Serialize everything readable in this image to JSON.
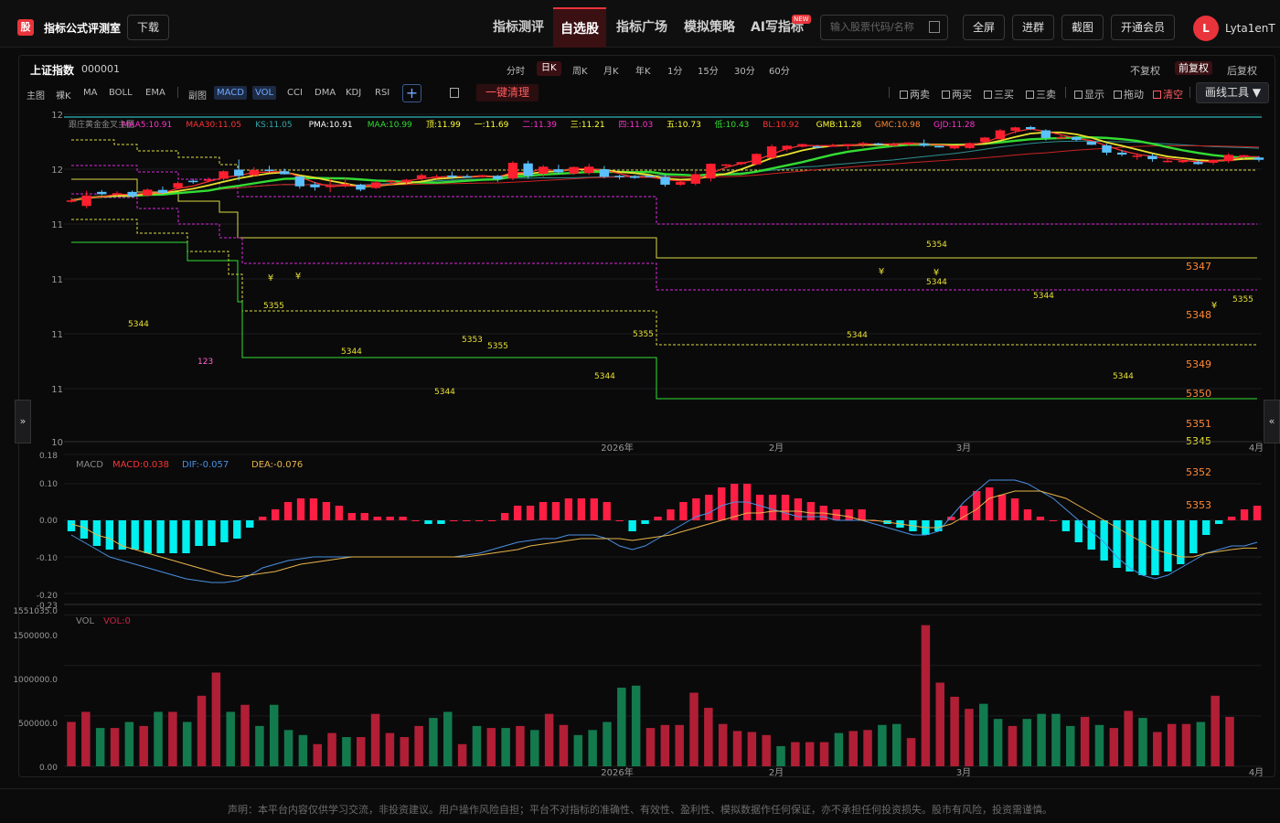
{
  "app": {
    "logo_char": "股",
    "title": "指标公式评测室",
    "download_label": "下载"
  },
  "nav": [
    {
      "label": "指标测评",
      "active": false
    },
    {
      "label": "自选股",
      "active": true
    },
    {
      "label": "指标广场",
      "active": false
    },
    {
      "label": "模拟策略",
      "active": false
    },
    {
      "label": "AI写指标",
      "active": false,
      "tag": "NEW"
    }
  ],
  "search": {
    "placeholder": "输入股票代码/名称"
  },
  "tools": [
    "全屏",
    "进群",
    "截图",
    "开通会员"
  ],
  "user": {
    "avatar_char": "L",
    "name": "Lyta1enT"
  },
  "stock": {
    "name": "上证指数",
    "code": "000001"
  },
  "periods": [
    {
      "label": "分时",
      "active": false
    },
    {
      "label": "日K",
      "active": true
    },
    {
      "label": "周K",
      "active": false
    },
    {
      "label": "月K",
      "active": false
    },
    {
      "label": "年K",
      "active": false
    },
    {
      "label": "1分",
      "active": false
    },
    {
      "label": "15分",
      "active": false
    },
    {
      "label": "30分",
      "active": false
    },
    {
      "label": "60分",
      "active": false
    }
  ],
  "fuquan": [
    {
      "label": "不复权",
      "active": false
    },
    {
      "label": "前复权",
      "active": true
    },
    {
      "label": "后复权",
      "active": false
    }
  ],
  "main_indicators": [
    "主图",
    "裸K",
    "MA",
    "BOLL",
    "EMA"
  ],
  "sub_indicators": [
    {
      "label": "副图",
      "active": false
    },
    {
      "label": "MACD",
      "active": true
    },
    {
      "label": "VOL",
      "active": true
    },
    {
      "label": "CCI",
      "active": false
    },
    {
      "label": "DMA",
      "active": false
    },
    {
      "label": "KDJ",
      "active": false
    },
    {
      "label": "RSI",
      "active": false
    }
  ],
  "add_label": "+",
  "clear_all_label": "一键清理",
  "signal_toggles": [
    {
      "label": "两卖",
      "color": "#bbbbbb"
    },
    {
      "label": "两买",
      "color": "#bbbbbb"
    },
    {
      "label": "三买",
      "color": "#bbbbbb"
    },
    {
      "label": "三卖",
      "color": "#bbbbbb"
    },
    {
      "label": "显示",
      "color": "#bbbbbb"
    },
    {
      "label": "拖动",
      "color": "#bbbbbb"
    },
    {
      "label": "清空",
      "color": "#ff5a5f"
    }
  ],
  "draw_tool_label": "画线工具 ▼",
  "side_tabs": {
    "left": "»",
    "right": "«"
  },
  "footer": "声明：本平台内容仅供学习交流，非投资建议。用户操作风险自担；平台不对指标的准确性、有效性、盈利性、模拟数据作任何保证，亦不承担任何投资损失。股市有风险，投资需谨慎。",
  "chart_data": {
    "type": "candlestick",
    "main_legend": [
      {
        "text": "跟庄黄金金叉主图",
        "color": "#888888"
      },
      {
        "text": "MAA5:10.91",
        "color": "#ff33cc"
      },
      {
        "text": "MAA30:11.05",
        "color": "#ff3333"
      },
      {
        "text": "KS:11.05",
        "color": "#33aaaa"
      },
      {
        "text": "PMA:10.91",
        "color": "#ffffff"
      },
      {
        "text": "MAA:10.99",
        "color": "#33dd33"
      },
      {
        "text": "顶:11.99",
        "color": "#ffff33"
      },
      {
        "text": "一:11.69",
        "color": "#ffff33"
      },
      {
        "text": "二:11.39",
        "color": "#ff33cc"
      },
      {
        "text": "三:11.21",
        "color": "#ffff33"
      },
      {
        "text": "四:11.03",
        "color": "#ff33cc"
      },
      {
        "text": "五:10.73",
        "color": "#ffff33"
      },
      {
        "text": "低:10.43",
        "color": "#33dd33"
      },
      {
        "text": "BL:10.92",
        "color": "#ff3333"
      },
      {
        "text": "GMB:11.28",
        "color": "#ffff33"
      },
      {
        "text": "GMC:10.98",
        "color": "#ff8833"
      },
      {
        "text": "GJD:11.28",
        "color": "#ff33cc"
      }
    ],
    "y_ticks": [
      "12",
      "12",
      "11",
      "11",
      "11",
      "11",
      "10"
    ],
    "x_ticks": [
      "2026年",
      "2月",
      "3月",
      "4月"
    ],
    "candles": [
      [
        0.735,
        0.737,
        0.745,
        0.73
      ],
      [
        0.72,
        0.752,
        0.766,
        0.713
      ],
      [
        0.763,
        0.756,
        0.769,
        0.753
      ],
      [
        0.757,
        0.759,
        0.765,
        0.751
      ],
      [
        0.763,
        0.75,
        0.767,
        0.746
      ],
      [
        0.752,
        0.77,
        0.774,
        0.748
      ],
      [
        0.769,
        0.76,
        0.779,
        0.756
      ],
      [
        0.775,
        0.79,
        0.795,
        0.771
      ],
      [
        0.797,
        0.793,
        0.803,
        0.788
      ],
      [
        0.797,
        0.801,
        0.807,
        0.792
      ],
      [
        0.803,
        0.826,
        0.829,
        0.798
      ],
      [
        0.831,
        0.812,
        0.862,
        0.798
      ],
      [
        0.814,
        0.83,
        0.839,
        0.81
      ],
      [
        0.831,
        0.829,
        0.843,
        0.822
      ],
      [
        0.826,
        0.817,
        0.834,
        0.816
      ],
      [
        0.81,
        0.78,
        0.812,
        0.773
      ],
      [
        0.786,
        0.777,
        0.793,
        0.767
      ],
      [
        0.778,
        0.782,
        0.805,
        0.762
      ],
      [
        0.783,
        0.787,
        0.806,
        0.776
      ],
      [
        0.785,
        0.77,
        0.788,
        0.765
      ],
      [
        0.775,
        0.792,
        0.796,
        0.772
      ],
      [
        0.794,
        0.797,
        0.799,
        0.787
      ],
      [
        0.792,
        0.8,
        0.803,
        0.787
      ],
      [
        0.804,
        0.814,
        0.819,
        0.797
      ],
      [
        0.809,
        0.81,
        0.816,
        0.803
      ],
      [
        0.813,
        0.808,
        0.825,
        0.802
      ],
      [
        0.811,
        0.81,
        0.817,
        0.806
      ],
      [
        0.814,
        0.814,
        0.815,
        0.807
      ],
      [
        0.812,
        0.802,
        0.815,
        0.794
      ],
      [
        0.804,
        0.852,
        0.857,
        0.799
      ],
      [
        0.85,
        0.812,
        0.858,
        0.804
      ],
      [
        0.818,
        0.84,
        0.845,
        0.809
      ],
      [
        0.832,
        0.823,
        0.846,
        0.818
      ],
      [
        0.819,
        0.839,
        0.84,
        0.815
      ],
      [
        0.821,
        0.84,
        0.849,
        0.815
      ],
      [
        0.832,
        0.809,
        0.842,
        0.805
      ],
      [
        0.812,
        0.808,
        0.815,
        0.801
      ],
      [
        0.81,
        0.806,
        0.814,
        0.803
      ],
      [
        0.812,
        0.811,
        0.813,
        0.809
      ],
      [
        0.809,
        0.785,
        0.816,
        0.779
      ],
      [
        0.785,
        0.793,
        0.797,
        0.781
      ],
      [
        0.788,
        0.817,
        0.827,
        0.783
      ],
      [
        0.804,
        0.849,
        0.85,
        0.795
      ],
      [
        0.844,
        0.847,
        0.848,
        0.84
      ],
      [
        0.848,
        0.854,
        0.855,
        0.844
      ],
      [
        0.847,
        0.879,
        0.881,
        0.845
      ],
      [
        0.867,
        0.902,
        0.908,
        0.865
      ],
      [
        0.893,
        0.904,
        0.906,
        0.887
      ],
      [
        0.901,
        0.909,
        0.91,
        0.899
      ],
      [
        0.902,
        0.899,
        0.906,
        0.896
      ],
      [
        0.904,
        0.905,
        0.91,
        0.904
      ],
      [
        0.903,
        0.909,
        0.909,
        0.893
      ],
      [
        0.907,
        0.912,
        0.916,
        0.899
      ],
      [
        0.911,
        0.908,
        0.913,
        0.906
      ],
      [
        0.906,
        0.908,
        0.914,
        0.901
      ],
      [
        0.914,
        0.914,
        0.915,
        0.904
      ],
      [
        0.911,
        0.904,
        0.923,
        0.9
      ],
      [
        0.903,
        0.902,
        0.905,
        0.899
      ],
      [
        0.896,
        0.903,
        0.905,
        0.893
      ],
      [
        0.897,
        0.912,
        0.914,
        0.894
      ],
      [
        0.916,
        0.929,
        0.931,
        0.914
      ],
      [
        0.924,
        0.951,
        0.955,
        0.924
      ],
      [
        0.95,
        0.96,
        0.962,
        0.942
      ],
      [
        0.961,
        0.955,
        0.965,
        0.952
      ],
      [
        0.951,
        0.928,
        0.954,
        0.92
      ],
      [
        0.927,
        0.93,
        0.936,
        0.928
      ],
      [
        0.93,
        0.922,
        0.932,
        0.918
      ],
      [
        0.917,
        0.907,
        0.918,
        0.906
      ],
      [
        0.905,
        0.883,
        0.91,
        0.875
      ],
      [
        0.883,
        0.877,
        0.891,
        0.872
      ],
      [
        0.872,
        0.874,
        0.881,
        0.861
      ],
      [
        0.873,
        0.863,
        0.879,
        0.855
      ],
      [
        0.858,
        0.858,
        0.867,
        0.853
      ],
      [
        0.854,
        0.858,
        0.859,
        0.851
      ],
      [
        0.854,
        0.848,
        0.86,
        0.846
      ],
      [
        0.852,
        0.861,
        0.862,
        0.846
      ],
      [
        0.857,
        0.876,
        0.881,
        0.852
      ],
      [
        0.869,
        0.875,
        0.876,
        0.864
      ],
      [
        0.868,
        0.861,
        0.872,
        0.855
      ]
    ],
    "macd": {
      "ylim": [
        -0.23,
        0.18
      ],
      "y_ticks": [
        "0.18",
        "0.10",
        "0.00",
        "-0.10",
        "-0.20",
        "-0.23"
      ],
      "legend": [
        {
          "text": "MACD",
          "color": "#888888"
        },
        {
          "text": "MACD:0.038",
          "color": "#ff3333"
        },
        {
          "text": "DIF:-0.057",
          "color": "#4a90e2"
        },
        {
          "text": "DEA:-0.076",
          "color": "#e8b54a"
        }
      ],
      "hist": [
        -0.03,
        -0.05,
        -0.07,
        -0.08,
        -0.08,
        -0.08,
        -0.09,
        -0.09,
        -0.09,
        -0.09,
        -0.07,
        -0.07,
        -0.06,
        -0.05,
        -0.02,
        0.01,
        0.03,
        0.05,
        0.06,
        0.06,
        0.05,
        0.04,
        0.02,
        0.02,
        0.01,
        0.01,
        0.01,
        0.0,
        -0.01,
        -0.01,
        0.0,
        0.0,
        0.0,
        0.0,
        0.02,
        0.04,
        0.04,
        0.05,
        0.05,
        0.06,
        0.06,
        0.06,
        0.05,
        0.0,
        -0.03,
        -0.01,
        0.01,
        0.03,
        0.05,
        0.06,
        0.07,
        0.09,
        0.1,
        0.1,
        0.07,
        0.07,
        0.07,
        0.06,
        0.05,
        0.04,
        0.03,
        0.03,
        0.03,
        0.0,
        -0.01,
        -0.02,
        -0.03,
        -0.04,
        -0.03,
        0.01,
        0.04,
        0.08,
        0.09,
        0.07,
        0.06,
        0.03,
        0.01,
        0.0,
        -0.03,
        -0.06,
        -0.08,
        -0.11,
        -0.13,
        -0.14,
        -0.15,
        -0.15,
        -0.14,
        -0.12,
        -0.09,
        -0.04,
        -0.01,
        0.01,
        0.03,
        0.04
      ],
      "dif": [
        -0.04,
        -0.06,
        -0.08,
        -0.1,
        -0.11,
        -0.12,
        -0.13,
        -0.14,
        -0.15,
        -0.16,
        -0.165,
        -0.17,
        -0.17,
        -0.165,
        -0.15,
        -0.13,
        -0.12,
        -0.11,
        -0.105,
        -0.1,
        -0.1,
        -0.1,
        -0.1,
        -0.1,
        -0.1,
        -0.1,
        -0.1,
        -0.1,
        -0.1,
        -0.1,
        -0.1,
        -0.095,
        -0.09,
        -0.08,
        -0.07,
        -0.06,
        -0.055,
        -0.05,
        -0.05,
        -0.04,
        -0.04,
        -0.04,
        -0.05,
        -0.07,
        -0.08,
        -0.07,
        -0.05,
        -0.03,
        -0.01,
        0.01,
        0.02,
        0.04,
        0.05,
        0.05,
        0.04,
        0.03,
        0.02,
        0.01,
        0.01,
        0.01,
        0.0,
        0.0,
        0.0,
        -0.01,
        -0.02,
        -0.03,
        -0.04,
        -0.04,
        -0.03,
        0.01,
        0.05,
        0.08,
        0.11,
        0.11,
        0.11,
        0.1,
        0.08,
        0.06,
        0.03,
        0.0,
        -0.03,
        -0.06,
        -0.1,
        -0.13,
        -0.15,
        -0.16,
        -0.15,
        -0.13,
        -0.11,
        -0.09,
        -0.08,
        -0.07,
        -0.07,
        -0.06
      ],
      "dea": [
        -0.01,
        -0.02,
        -0.04,
        -0.05,
        -0.07,
        -0.08,
        -0.09,
        -0.1,
        -0.11,
        -0.12,
        -0.13,
        -0.14,
        -0.15,
        -0.155,
        -0.15,
        -0.145,
        -0.14,
        -0.13,
        -0.12,
        -0.115,
        -0.11,
        -0.105,
        -0.1,
        -0.1,
        -0.1,
        -0.1,
        -0.1,
        -0.1,
        -0.1,
        -0.1,
        -0.1,
        -0.1,
        -0.095,
        -0.09,
        -0.085,
        -0.08,
        -0.07,
        -0.065,
        -0.06,
        -0.055,
        -0.05,
        -0.05,
        -0.05,
        -0.05,
        -0.055,
        -0.05,
        -0.045,
        -0.04,
        -0.03,
        -0.02,
        -0.01,
        0.0,
        0.01,
        0.02,
        0.02,
        0.025,
        0.025,
        0.025,
        0.02,
        0.02,
        0.015,
        0.01,
        0.0,
        0.0,
        -0.005,
        -0.01,
        -0.015,
        -0.02,
        -0.02,
        -0.01,
        0.01,
        0.03,
        0.06,
        0.07,
        0.08,
        0.08,
        0.08,
        0.07,
        0.06,
        0.04,
        0.02,
        0.0,
        -0.02,
        -0.04,
        -0.06,
        -0.08,
        -0.09,
        -0.1,
        -0.1,
        -0.09,
        -0.085,
        -0.08,
        -0.076,
        -0.076
      ]
    },
    "vol": {
      "ylim": [
        0,
        1551035.0
      ],
      "y_ticks": [
        "1551035.0",
        "1500000.0",
        "1000000.0",
        "500000.0",
        "0.00"
      ],
      "legend": [
        {
          "text": "VOL",
          "color": "#888888"
        },
        {
          "text": "VOL:0",
          "color": "#cc2244"
        }
      ],
      "bars": [
        440000,
        540000,
        380000,
        380000,
        440000,
        400000,
        540000,
        540000,
        440000,
        700000,
        930000,
        540000,
        610000,
        400000,
        610000,
        360000,
        310000,
        220000,
        330000,
        290000,
        290000,
        520000,
        330000,
        290000,
        400000,
        480000,
        540000,
        220000,
        400000,
        380000,
        380000,
        400000,
        360000,
        520000,
        410000,
        310000,
        360000,
        440000,
        780000,
        800000,
        380000,
        410000,
        410000,
        730000,
        580000,
        420000,
        350000,
        340000,
        310000,
        200000,
        240000,
        240000,
        240000,
        330000,
        350000,
        360000,
        410000,
        420000,
        280000,
        1400000,
        830000,
        690000,
        570000,
        620000,
        470000,
        400000,
        470000,
        520000,
        520000,
        400000,
        490000,
        410000,
        380000,
        550000,
        480000,
        340000,
        420000,
        420000,
        440000,
        700000,
        490000
      ]
    }
  }
}
